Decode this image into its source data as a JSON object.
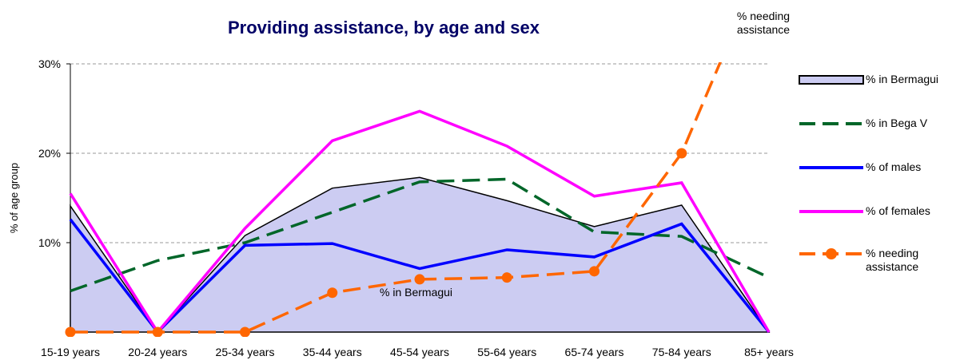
{
  "chart_data": {
    "type": "line",
    "title": "Providing assistance, by age and sex",
    "y_label": "% of age group",
    "categories": [
      "15-19 years",
      "20-24 years",
      "25-34 years",
      "35-44 years",
      "45-54 years",
      "55-64 years",
      "65-74 years",
      "75-84 years",
      "85+ years"
    ],
    "ylim": [
      0,
      30
    ],
    "yticks": [
      {
        "value": 10,
        "label": "10%"
      },
      {
        "value": 20,
        "label": "20%"
      },
      {
        "value": 30,
        "label": "30%"
      }
    ],
    "grid": true,
    "legend": "right",
    "series": [
      {
        "name": "% in Bermagui",
        "color": "#000000",
        "fill": "#ccccf2",
        "values": [
          14.1,
          0,
          10.8,
          16.1,
          17.3,
          14.7,
          11.8,
          14.2,
          0
        ]
      },
      {
        "name": "% in Bega V",
        "color": "#006629",
        "dashed": true,
        "values": [
          4.6,
          8,
          10,
          13.4,
          16.8,
          17.1,
          11.2,
          10.7,
          6.1
        ]
      },
      {
        "name": "% of males",
        "color": "#0000ff",
        "values": [
          12.6,
          0,
          9.7,
          9.9,
          7.1,
          9.2,
          8.4,
          12.1,
          0
        ]
      },
      {
        "name": "% of females",
        "color": "#ff00ff",
        "values": [
          15.5,
          0,
          11.6,
          21.4,
          24.7,
          20.8,
          15.2,
          16.7,
          0
        ]
      },
      {
        "name": "% needing assistance",
        "color": "#ff6600",
        "dashed": true,
        "marker": true,
        "values": [
          0,
          0,
          0,
          4.4,
          5.9,
          6.1,
          6.8,
          20,
          43
        ]
      }
    ],
    "annotations": [
      {
        "text": "% needing assistance"
      },
      {
        "text": "% in Bermagui"
      }
    ]
  }
}
